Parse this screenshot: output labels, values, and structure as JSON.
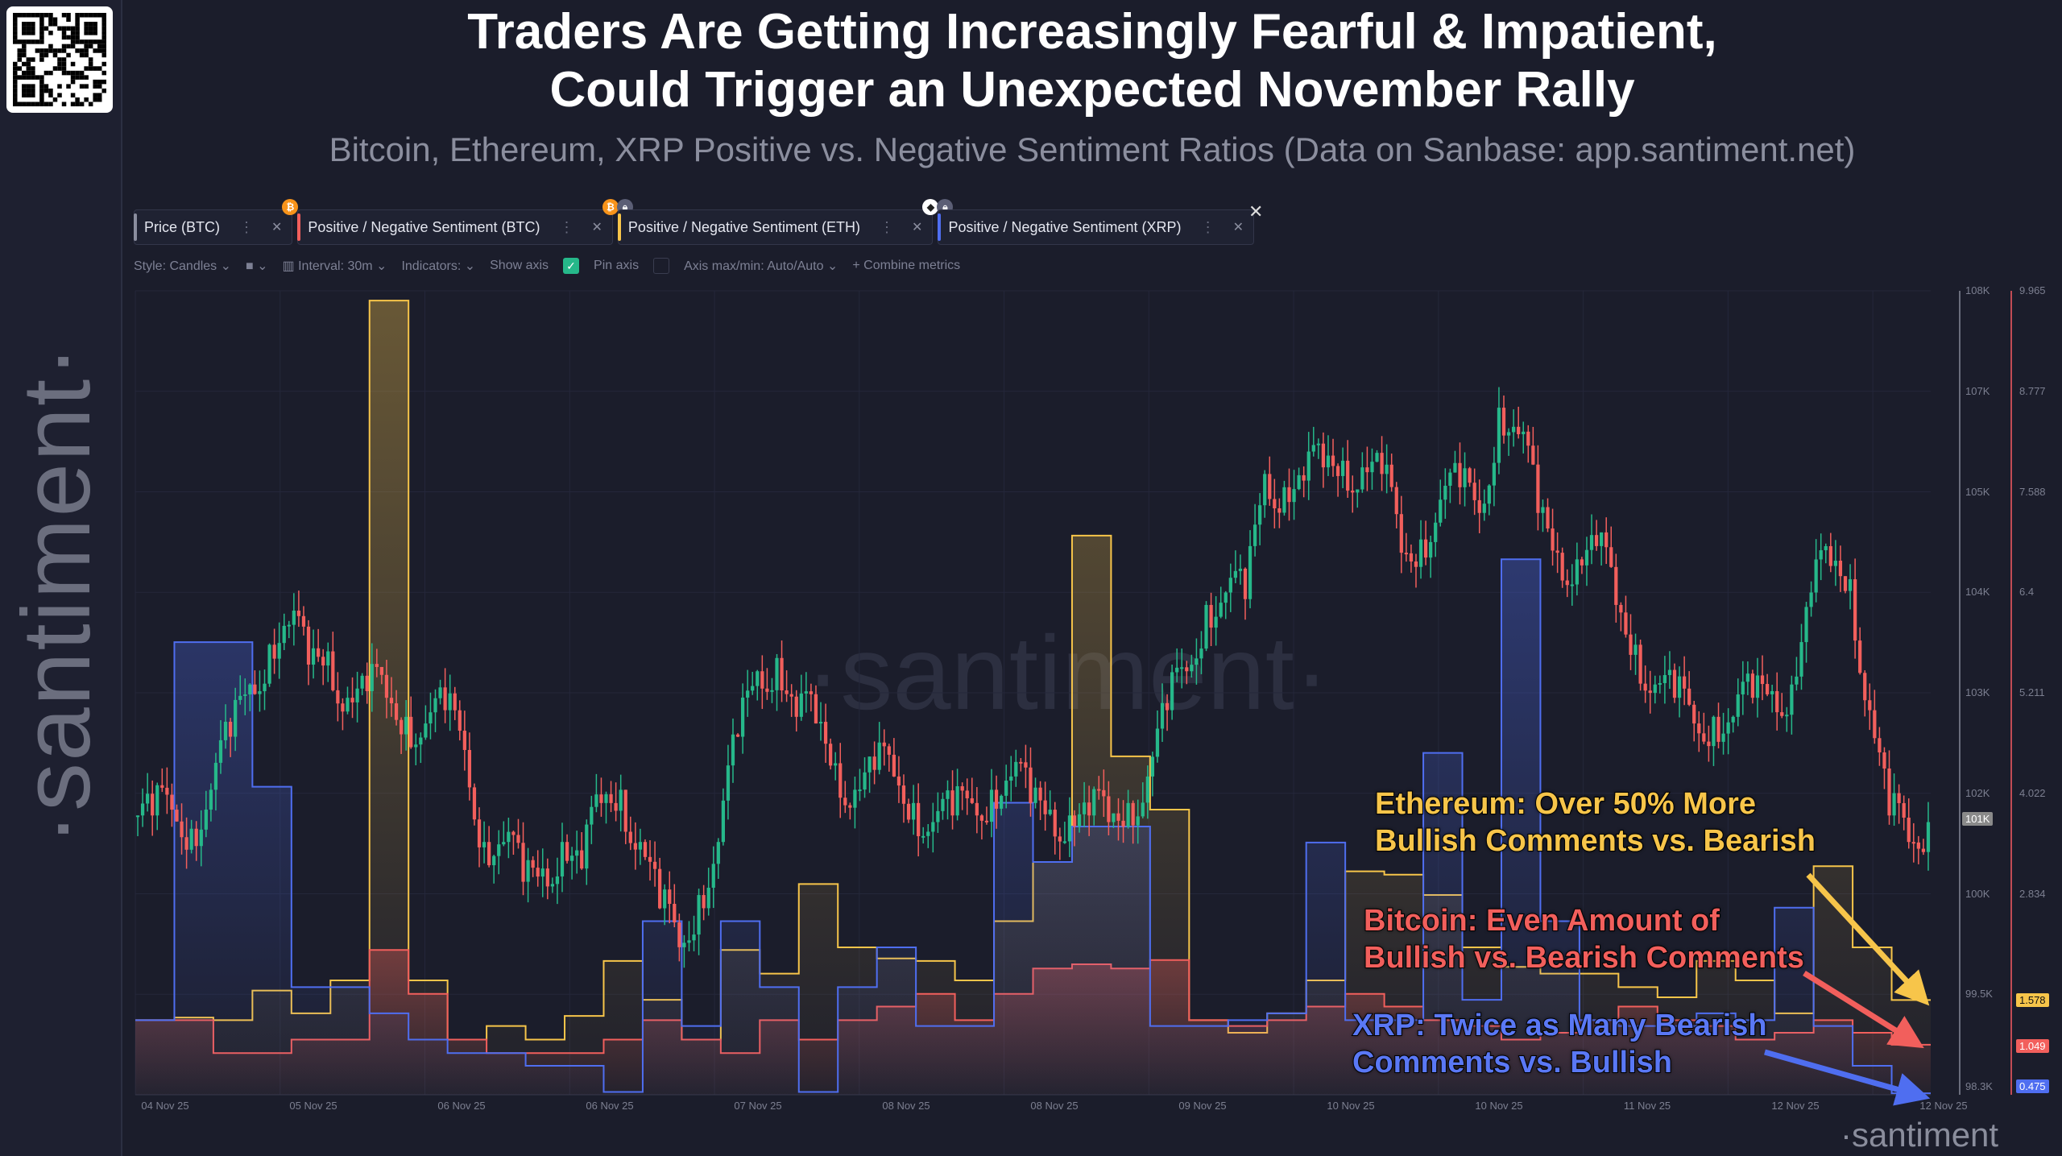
{
  "header": {
    "title_line1": "Traders Are Getting Increasingly Fearful & Impatient,",
    "title_line2": "Could Trigger an Unexpected November Rally",
    "subtitle": "Bitcoin, Ethereum, XRP Positive vs. Negative Sentiment Ratios (Data on Sanbase: app.santiment.net)"
  },
  "brand": {
    "watermark": "·santiment·",
    "corner_watermark": "·santiment"
  },
  "tabs": [
    {
      "label": "Price (BTC)",
      "color": "#8a8d9e"
    },
    {
      "label": "Positive / Negative Sentiment (BTC)",
      "color": "#f25f5c"
    },
    {
      "label": "Positive / Negative Sentiment (ETH)",
      "color": "#f7c54a"
    },
    {
      "label": "Positive / Negative Sentiment (XRP)",
      "color": "#4f6ef0"
    }
  ],
  "toolbar": {
    "style": "Style: Candles",
    "interval": "Interval: 30m",
    "indicators": "Indicators:",
    "show_axis": "Show axis",
    "show_axis_checked": true,
    "pin_axis": "Pin axis",
    "pin_axis_checked": false,
    "axis_minmax": "Axis max/min: Auto/Auto",
    "combine": "Combine metrics"
  },
  "annotations": {
    "eth": [
      "Ethereum: Over 50% More",
      "Bullish Comments vs. Bearish"
    ],
    "btc": [
      "Bitcoin: Even Amount of",
      "Bullish vs. Bearish Comments"
    ],
    "xrp": [
      "XRP: Twice as Many Bearish",
      "Comments vs. Bullish"
    ]
  },
  "chart_data": {
    "type": "line",
    "x_tick_labels": [
      "04 Nov 25",
      "05 Nov 25",
      "06 Nov 25",
      "06 Nov 25",
      "07 Nov 25",
      "08 Nov 25",
      "08 Nov 25",
      "09 Nov 25",
      "10 Nov 25",
      "10 Nov 25",
      "11 Nov 25",
      "12 Nov 25",
      "12 Nov 25"
    ],
    "price_axis": {
      "tick_labels": [
        "108K",
        "107K",
        "105K",
        "104K",
        "103K",
        "102K",
        "100K",
        "99.5K",
        "98.3K"
      ],
      "range_k": [
        98.3,
        108
      ],
      "current_label": "101K"
    },
    "sentiment_axis": {
      "tick_labels": [
        "9.965",
        "8.777",
        "7.588",
        "6.4",
        "5.211",
        "4.022",
        "2.834"
      ],
      "range": [
        0.457,
        9.965
      ]
    },
    "price_btc_candles_close_k": [
      101.67,
      101.74,
      101.51,
      101.98,
      102.62,
      103.25,
      103.73,
      103.97,
      103.49,
      103.65,
      103.09,
      103.17,
      103.09,
      102.86,
      102.78,
      102.94,
      102.46,
      101.35,
      101.35,
      100.87,
      101.03,
      101.35,
      101.03,
      101.82,
      101.98,
      101.35,
      100.55,
      100.08,
      100.71,
      101.35,
      102.62,
      103.41,
      103.57,
      102.86,
      102.78,
      102.3,
      101.98,
      102.22,
      102.14,
      101.82,
      101.59,
      101.67,
      101.82,
      101.98,
      102.14,
      101.82,
      101.74,
      101.67,
      101.67,
      101.59,
      101.82,
      102.14,
      102.94,
      103.41,
      104.21,
      104.36,
      104.28,
      105.79,
      105.63,
      105.71,
      105.87,
      105.95,
      105.87,
      105.79,
      104.84,
      105.0,
      105.48,
      105.63,
      105.32,
      106.59,
      106.27,
      105.32,
      104.84,
      104.76,
      104.92,
      104.21,
      103.73,
      103.25,
      103.09,
      102.78,
      102.86,
      102.86,
      103.09,
      103.17,
      103.25,
      104.36,
      104.68,
      104.52,
      102.94,
      101.67,
      101.35,
      101.59
    ],
    "series": [
      {
        "name": "Positive / Negative Sentiment (ETH)",
        "color": "#f7c54a",
        "last": "1.578",
        "values": [
          1.34,
          1.37,
          1.34,
          1.69,
          1.42,
          1.81,
          9.85,
          1.81,
          1.11,
          1.27,
          1.11,
          1.39,
          2.04,
          1.58,
          1.11,
          2.17,
          1.89,
          2.95,
          2.2,
          2.07,
          2.04,
          1.81,
          2.51,
          3.21,
          7.07,
          4.46,
          3.83,
          1.34,
          1.19,
          1.42,
          1.81,
          3.1,
          3.06,
          2.82,
          2.2,
          1.97,
          1.89,
          1.89,
          1.73,
          1.61,
          2.04,
          1.81,
          1.42,
          3.16,
          2.2,
          1.578
        ]
      },
      {
        "name": "Positive / Negative Sentiment (BTC)",
        "color": "#f25f5c",
        "last": "1.049",
        "values": [
          1.34,
          1.34,
          0.95,
          0.95,
          1.11,
          1.11,
          2.17,
          1.65,
          1.11,
          0.95,
          0.95,
          0.95,
          1.11,
          1.34,
          1.11,
          0.95,
          1.34,
          1.11,
          1.34,
          1.5,
          1.65,
          1.34,
          1.65,
          1.95,
          2.0,
          1.95,
          2.05,
          1.34,
          1.27,
          1.34,
          1.5,
          1.65,
          1.5,
          1.34,
          1.27,
          1.11,
          1.19,
          1.34,
          1.5,
          1.34,
          1.27,
          1.11,
          1.19,
          1.34,
          1.19,
          1.049
        ]
      },
      {
        "name": "Positive / Negative Sentiment (XRP)",
        "color": "#4f6ef0",
        "last": "0.475",
        "values": [
          1.34,
          5.81,
          5.81,
          4.1,
          1.73,
          1.73,
          1.42,
          1.11,
          0.95,
          0.95,
          0.8,
          0.8,
          0.49,
          2.51,
          1.27,
          2.51,
          1.73,
          0.49,
          1.73,
          2.2,
          1.27,
          1.27,
          3.91,
          3.21,
          3.63,
          3.63,
          1.27,
          1.27,
          1.34,
          1.42,
          3.44,
          1.34,
          1.34,
          4.5,
          1.58,
          6.79,
          2.51,
          1.34,
          1.27,
          1.27,
          1.42,
          1.34,
          2.67,
          1.27,
          0.8,
          0.475
        ]
      }
    ],
    "candle_colors": {
      "up": "#26b88a",
      "down": "#f25f5c"
    }
  }
}
